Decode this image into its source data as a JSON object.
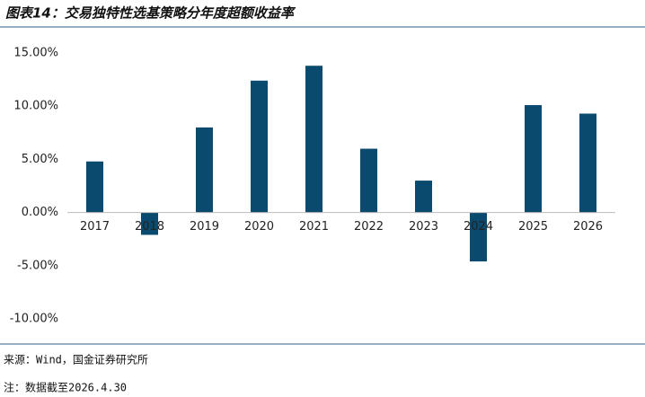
{
  "chart_data": {
    "type": "bar",
    "title": "图表14：交易独特性选基策略分年度超额收益率",
    "categories": [
      "2017",
      "2018",
      "2019",
      "2020",
      "2021",
      "2022",
      "2023",
      "2024",
      "2025",
      "2026"
    ],
    "values": [
      4.8,
      -2.1,
      8.0,
      12.4,
      13.8,
      6.0,
      3.0,
      -4.6,
      10.1,
      9.3
    ],
    "color": "#0b4a6f",
    "ylim": [
      -10,
      15
    ],
    "yticks": [
      {
        "value": -10,
        "label": "-10.00%"
      },
      {
        "value": -5,
        "label": "-5.00%"
      },
      {
        "value": 0,
        "label": "0.00%"
      },
      {
        "value": 5,
        "label": "5.00%"
      },
      {
        "value": 10,
        "label": "10.00%"
      },
      {
        "value": 15,
        "label": "15.00%"
      }
    ],
    "grid": false,
    "source": "来源：Wind，国金证券研究所",
    "note": "注：数据截至2026.4.30"
  }
}
